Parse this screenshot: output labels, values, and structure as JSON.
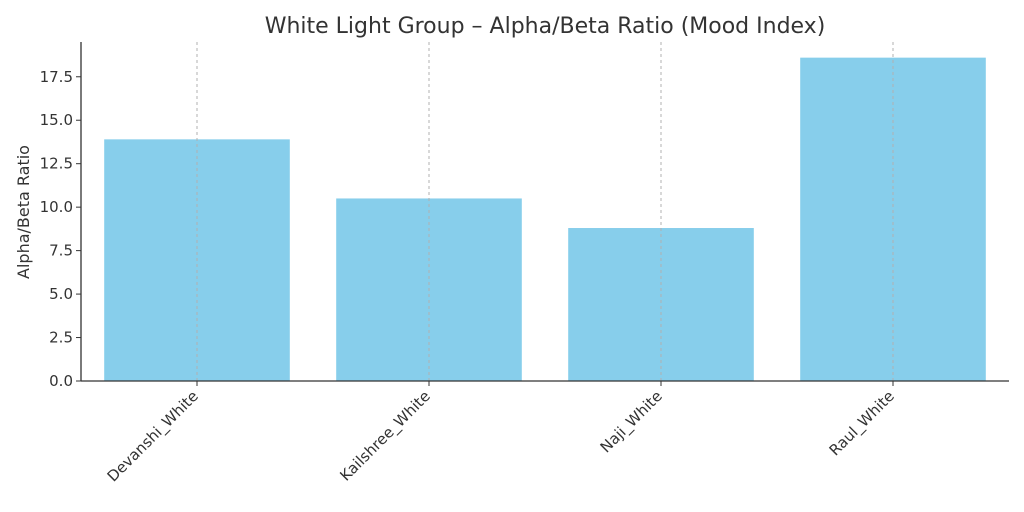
{
  "chart_data": {
    "type": "bar",
    "title": "White Light Group – Alpha/Beta Ratio (Mood Index)",
    "xlabel": "",
    "ylabel": "Alpha/Beta Ratio",
    "categories": [
      "Devanshi_White",
      "Kailshree_White",
      "Naji_White",
      "Raul_White"
    ],
    "values": [
      13.9,
      10.5,
      8.8,
      18.6
    ],
    "ylim": [
      0,
      19.5
    ],
    "yticks": [
      0.0,
      2.5,
      5.0,
      7.5,
      10.0,
      12.5,
      15.0,
      17.5
    ],
    "ytick_labels": [
      "0.0",
      "2.5",
      "5.0",
      "7.5",
      "10.0",
      "12.5",
      "15.0",
      "17.5"
    ],
    "grid": "x-axis dashed",
    "bar_color": "#87CEEB",
    "x_tick_rotation": "45"
  }
}
